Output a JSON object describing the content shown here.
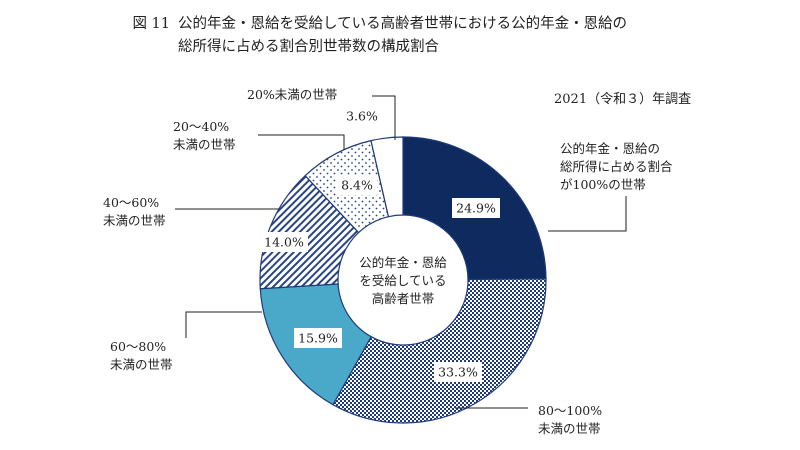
{
  "chart_data": {
    "type": "pie",
    "title_prefix": "図 11",
    "title_lines": [
      "公的年金・恩給を受給している高齢者世帯における公的年金・恩給の",
      "総所得に占める割合別世帯数の構成割合"
    ],
    "note": "2021（令和３）年調査",
    "center_label": [
      "公的年金・恩給",
      "を受給している",
      "高齢者世帯"
    ],
    "slices": [
      {
        "name": "公的年金・恩給の総所得に占める割合が100%の世帯",
        "label_lines": [
          "公的年金・恩給の",
          "総所得に占める割合",
          "が100%の世帯"
        ],
        "value": 24.9,
        "value_label": "24.9%",
        "fill": "#0f2a5e",
        "pattern": "solid"
      },
      {
        "name": "80〜100%未満の世帯",
        "label_lines": [
          "80〜100%",
          "未満の世帯"
        ],
        "value": 33.3,
        "value_label": "33.3%",
        "fill": "#1f3a7a",
        "pattern": "checker"
      },
      {
        "name": "60〜80%未満の世帯",
        "label_lines": [
          "60〜80%",
          "未満の世帯"
        ],
        "value": 15.9,
        "value_label": "15.9%",
        "fill": "#4aa8c8",
        "pattern": "solid"
      },
      {
        "name": "40〜60%未満の世帯",
        "label_lines": [
          "40〜60%",
          "未満の世帯"
        ],
        "value": 14.0,
        "value_label": "14.0%",
        "fill": "#2a4585",
        "pattern": "diagonal"
      },
      {
        "name": "20〜40%未満の世帯",
        "label_lines": [
          "20〜40%",
          "未満の世帯"
        ],
        "value": 8.4,
        "value_label": "8.4%",
        "fill": "#2a4585",
        "pattern": "dots"
      },
      {
        "name": "20%未満の世帯",
        "label_lines": [
          "20%未満の世帯"
        ],
        "value": 3.6,
        "value_label": "3.6%",
        "fill": "#ffffff",
        "pattern": "solid"
      }
    ]
  }
}
